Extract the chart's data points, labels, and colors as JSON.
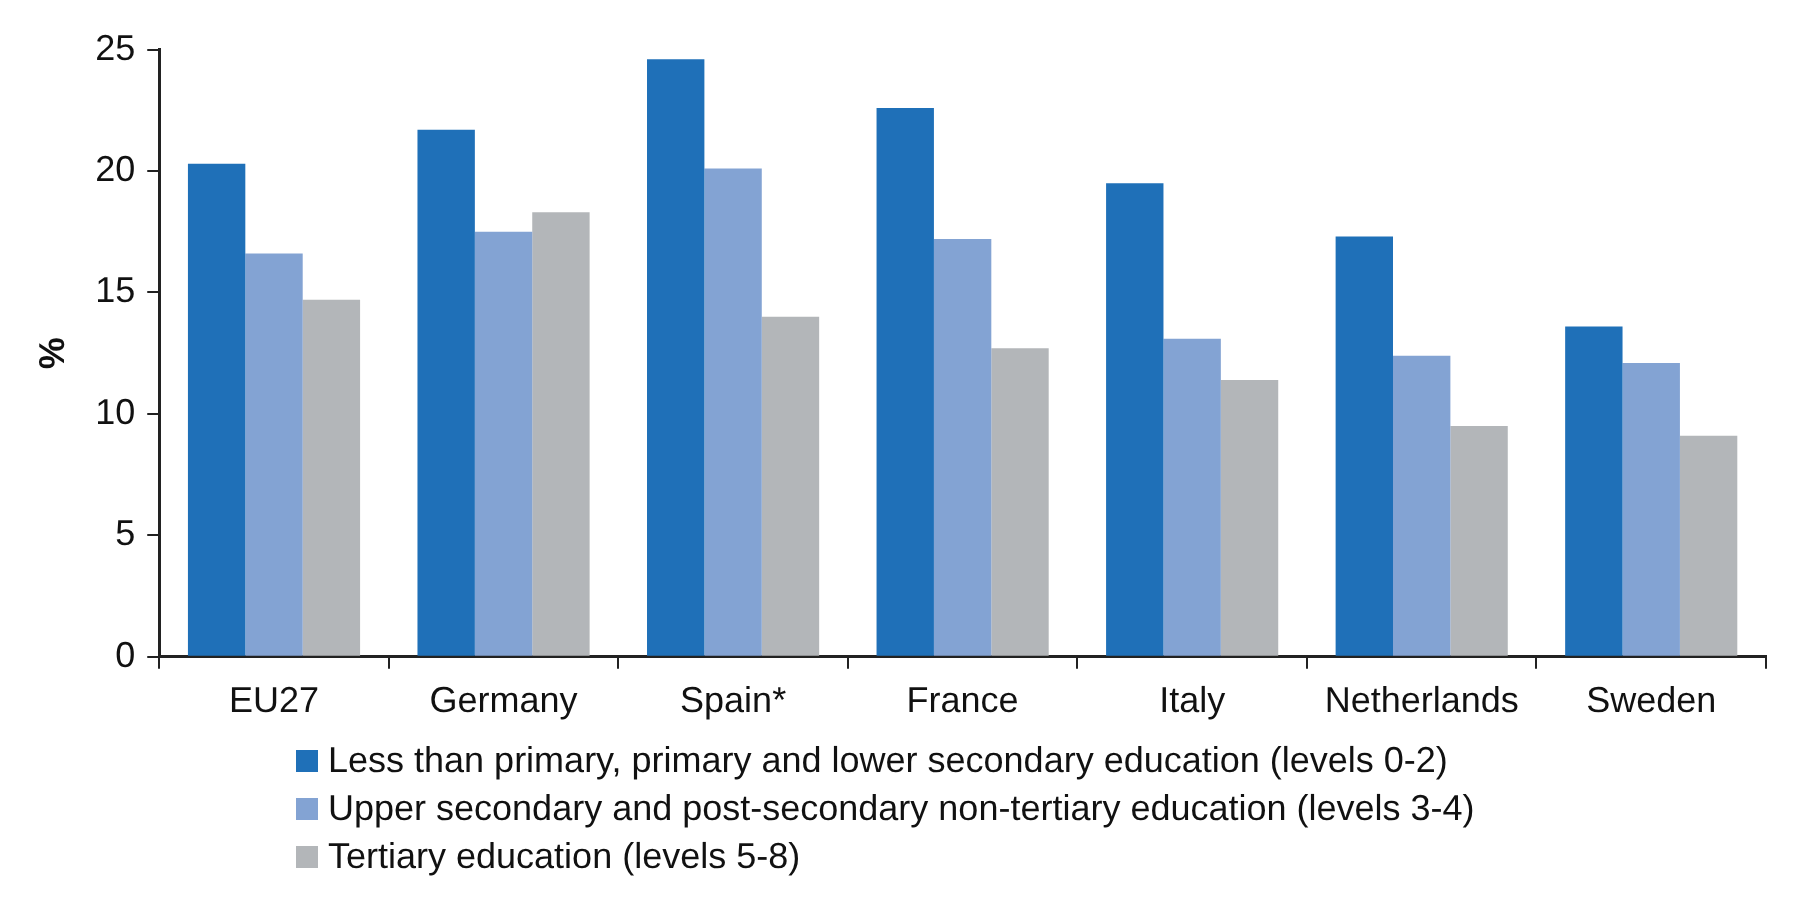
{
  "chart_data": {
    "type": "bar",
    "ylabel": "%",
    "categories": [
      "EU27",
      "Germany",
      "Spain*",
      "France",
      "Italy",
      "Netherlands",
      "Sweden"
    ],
    "series": [
      {
        "name": "Less than primary, primary and lower secondary education (levels 0-2)",
        "color": "#1f70b8",
        "values": [
          20.3,
          21.7,
          24.6,
          22.6,
          19.5,
          17.3,
          13.6
        ]
      },
      {
        "name": "Upper secondary and post-secondary non-tertiary education (levels 3-4)",
        "color": "#83a3d3",
        "values": [
          16.6,
          17.5,
          20.1,
          17.2,
          13.1,
          12.4,
          12.1
        ]
      },
      {
        "name": "Tertiary education (levels 5-8)",
        "color": "#b3b6b9",
        "values": [
          14.7,
          18.3,
          14.0,
          12.7,
          11.4,
          9.5,
          9.1
        ]
      }
    ],
    "ylim": [
      0,
      25
    ],
    "yticks": [
      0,
      5,
      10,
      15,
      20,
      25
    ],
    "grid": false,
    "legend": "bottom"
  }
}
